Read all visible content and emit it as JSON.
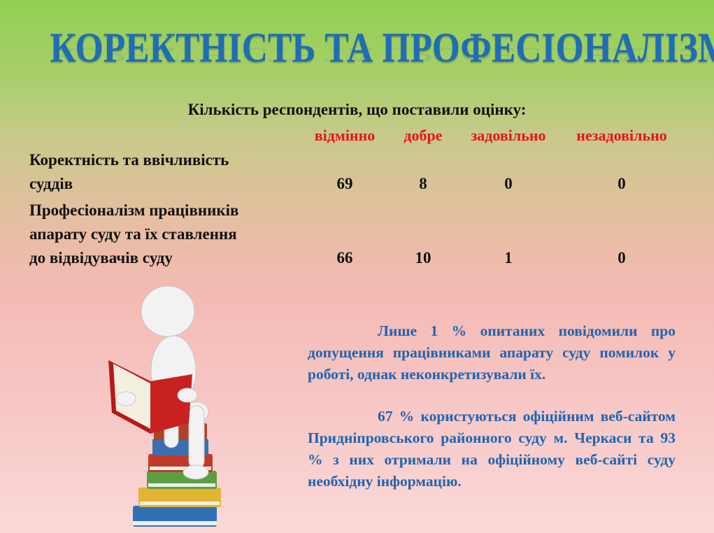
{
  "title": "КОРЕКТНІСТЬ ТА ПРОФЕСІОНАЛІЗМ",
  "subtitle": "Кількість респондентів, що поставили оцінку:",
  "columns": [
    "відмінно",
    "добре",
    "задовільно",
    "незадовільно"
  ],
  "rows": [
    {
      "label_lines": [
        "Коректність та ввічливість",
        "суддів"
      ],
      "values": [
        "69",
        "8",
        "0",
        "0"
      ]
    },
    {
      "label_lines": [
        "Професіоналізм працівників",
        "апарату суду та їх ставлення",
        "до відвідувачів суду"
      ],
      "values": [
        "66",
        "10",
        "1",
        "0"
      ]
    }
  ],
  "paragraphs": [
    "Лише 1 % опитаних повідомили про допущення працівниками апарату суду помилок у роботі, однак неконкретизували їх.",
    "67 % користуються офіційним веб-сайтом Придніпровського районного суду м. Черкаси та 93 % з них отримали на офіційному веб-сайті суду необхідну інформацію."
  ],
  "colors": {
    "title": "#1e6db6",
    "header": "#e8141c",
    "paragraph": "#1f64b0"
  },
  "illustration": "figure-reading-book-on-stack-of-books"
}
